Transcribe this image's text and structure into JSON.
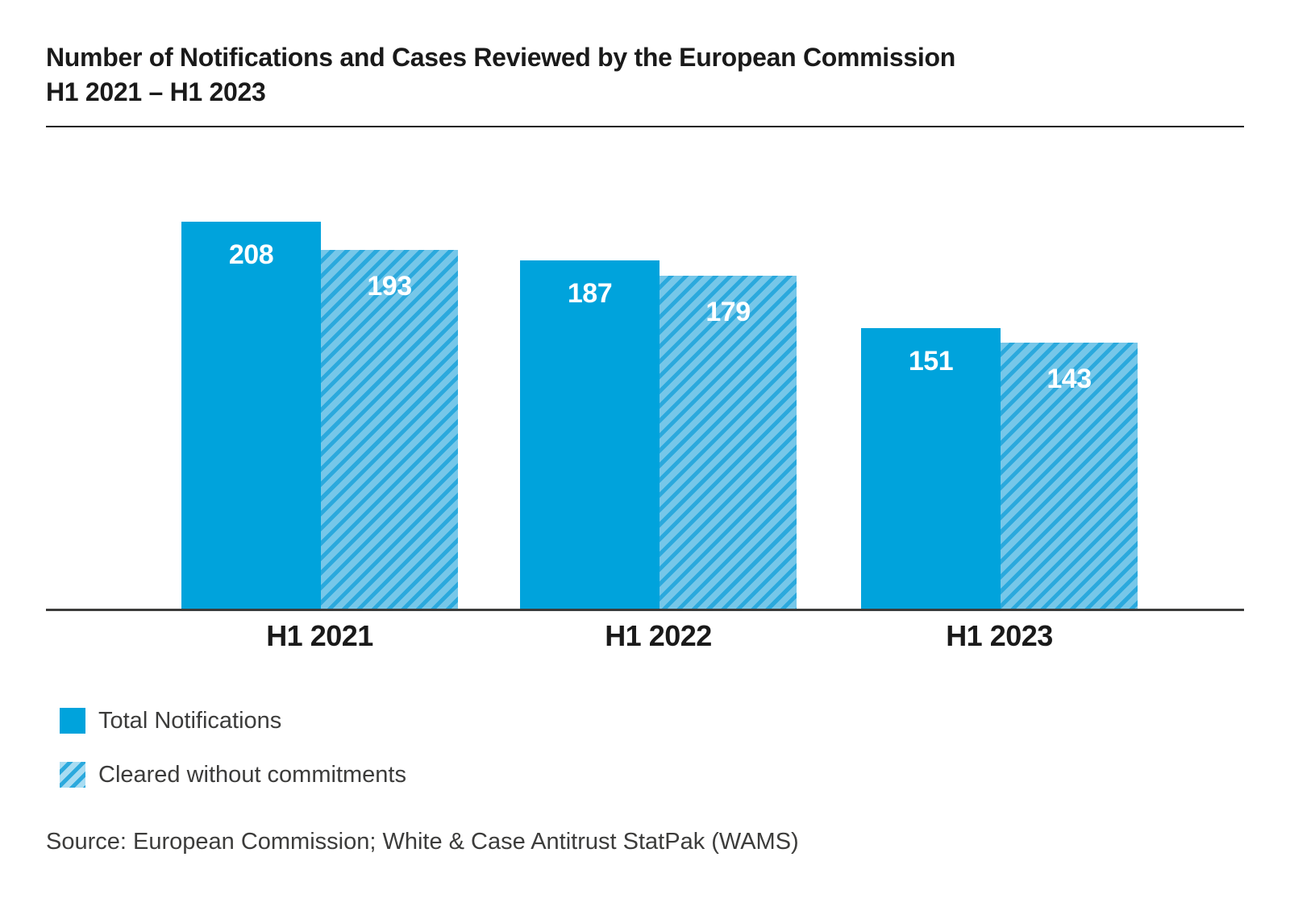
{
  "title": {
    "line1": "Number of Notifications and Cases Reviewed by the European Commission",
    "line2": "H1 2021 – H1 2023"
  },
  "chart_data": {
    "type": "bar",
    "categories": [
      "H1 2021",
      "H1 2022",
      "H1 2023"
    ],
    "series": [
      {
        "name": "Total Notifications",
        "style": "solid",
        "values": [
          208,
          187,
          151
        ]
      },
      {
        "name": "Cleared without commitments",
        "style": "hatched",
        "values": [
          193,
          179,
          143
        ]
      }
    ],
    "ylim": [
      0,
      208
    ],
    "grid": false,
    "value_labels": "inside-top",
    "legend_position": "bottom-left",
    "xlabel": "",
    "ylabel": ""
  },
  "legend": {
    "items": [
      {
        "label": "Total Notifications",
        "swatch": "solid"
      },
      {
        "label": "Cleared without commitments",
        "swatch": "hatched"
      }
    ]
  },
  "source": "Source: European Commission; White & Case Antitrust StatPak (WAMS)",
  "colors": {
    "solid_bar": "#00a3dc",
    "hatch_light": "#76c7e9",
    "hatch_dark": "#2ba9dd",
    "axis_line": "#3c3c3b",
    "title_text": "#1a1a1a",
    "value_text": "#ffffff",
    "body_text": "#3c3c3b"
  }
}
